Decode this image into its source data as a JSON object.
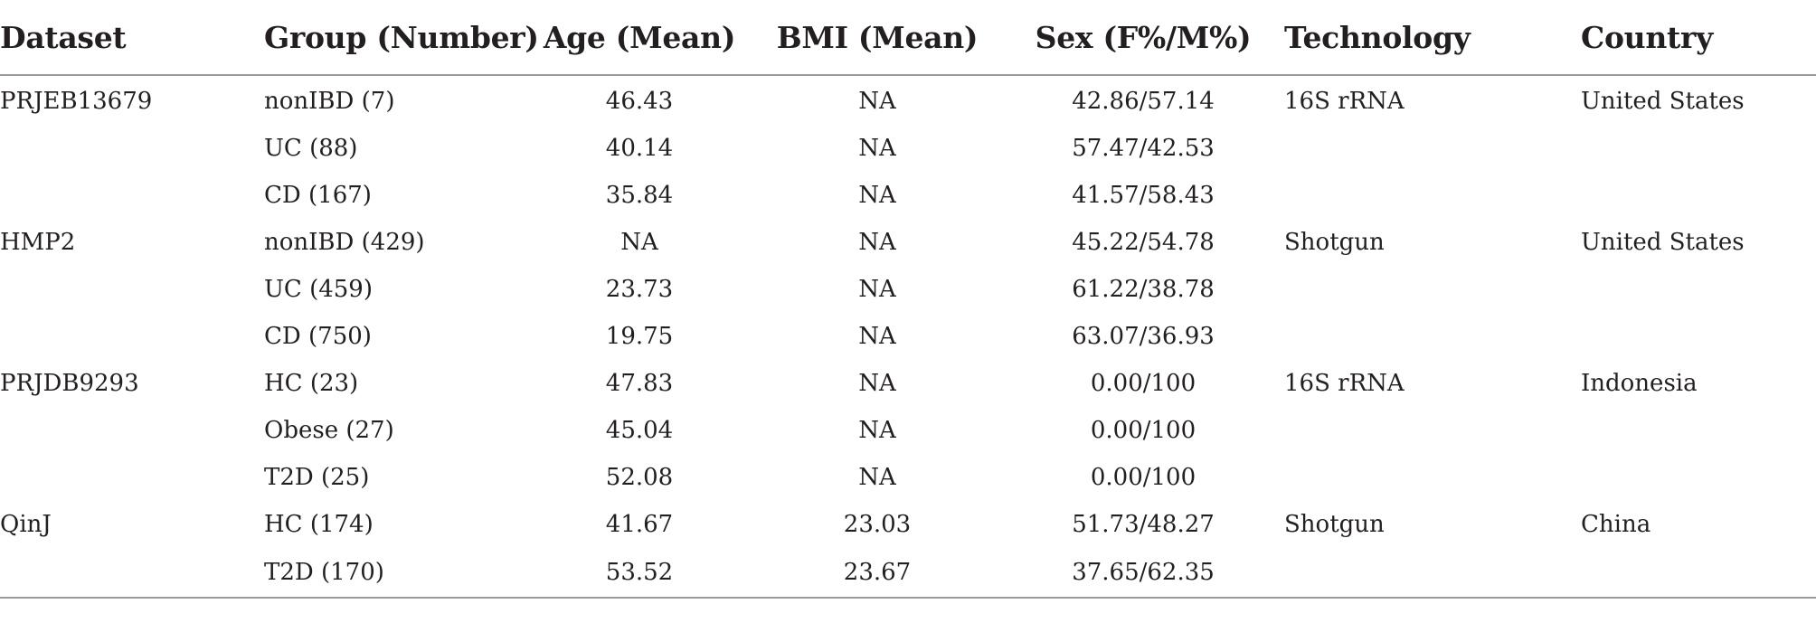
{
  "table": {
    "headers": [
      "Dataset",
      "Group (Number)",
      "Age (Mean)",
      "BMI (Mean)",
      "Sex (F%/M%)",
      "Technology",
      "Country"
    ],
    "rows": [
      [
        "PRJEB13679",
        "nonIBD (7)",
        "46.43",
        "NA",
        "42.86/57.14",
        "16S rRNA",
        "United States"
      ],
      [
        "",
        "UC (88)",
        "40.14",
        "NA",
        "57.47/42.53",
        "",
        ""
      ],
      [
        "",
        "CD (167)",
        "35.84",
        "NA",
        "41.57/58.43",
        "",
        ""
      ],
      [
        "HMP2",
        "nonIBD (429)",
        "NA",
        "NA",
        "45.22/54.78",
        "Shotgun",
        "United States"
      ],
      [
        "",
        "UC (459)",
        "23.73",
        "NA",
        "61.22/38.78",
        "",
        ""
      ],
      [
        "",
        "CD (750)",
        "19.75",
        "NA",
        "63.07/36.93",
        "",
        ""
      ],
      [
        "PRJDB9293",
        "HC (23)",
        "47.83",
        "NA",
        "0.00/100",
        "16S rRNA",
        "Indonesia"
      ],
      [
        "",
        "Obese (27)",
        "45.04",
        "NA",
        "0.00/100",
        "",
        ""
      ],
      [
        "",
        "T2D (25)",
        "52.08",
        "NA",
        "0.00/100",
        "",
        ""
      ],
      [
        "QinJ",
        "HC (174)",
        "41.67",
        "23.03",
        "51.73/48.27",
        "Shotgun",
        "China"
      ],
      [
        "",
        "T2D (170)",
        "53.52",
        "23.67",
        "37.65/62.35",
        "",
        ""
      ]
    ]
  }
}
